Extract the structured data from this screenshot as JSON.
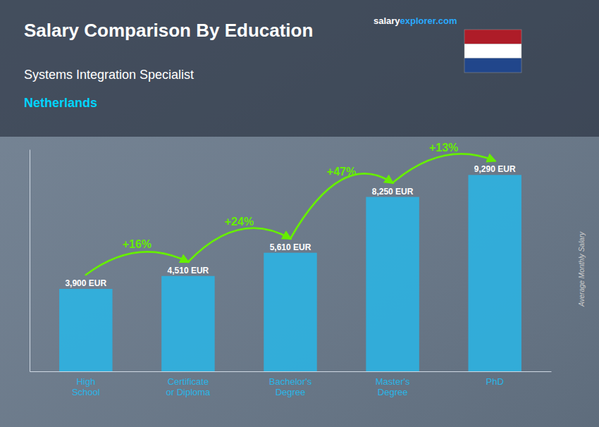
{
  "chart_data": {
    "type": "bar",
    "title": "Salary Comparison By Education",
    "subtitle": "Systems Integration Specialist",
    "country": "Netherlands",
    "watermark": [
      "salary",
      "explorer.com"
    ],
    "ylabel": "Average Monthly Salary",
    "categories": [
      "High\nSchool",
      "Certificate\nor Diploma",
      "Bachelor's\nDegree",
      "Master's\nDegree",
      "PhD"
    ],
    "values": [
      3900,
      4510,
      5610,
      8250,
      9290
    ],
    "value_labels": [
      "3,900 EUR",
      "4,510 EUR",
      "5,610 EUR",
      "8,250 EUR",
      "9,290 EUR"
    ],
    "data_labels": true,
    "annotations": [
      "+16%",
      "+24%",
      "+47%",
      "+13%"
    ],
    "color": "#29b6e8",
    "annotation_color": "#66ee00",
    "country_color": "#00d4ff",
    "watermark_colors": [
      "#ffffff",
      "#29aaff"
    ],
    "flag_colors": [
      "#ae1c28",
      "#ffffff",
      "#21468b"
    ],
    "background_color": "#6b7b8d",
    "ylim": [
      0,
      10500
    ],
    "tick_labels": "x",
    "grid": false
  }
}
